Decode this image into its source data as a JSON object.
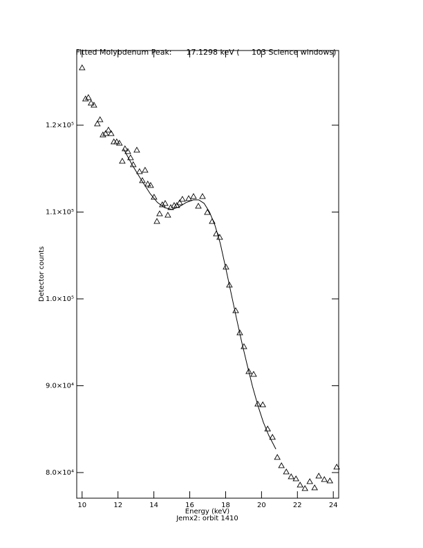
{
  "chart_data": {
    "type": "scatter",
    "title": "Fitted Molybdenum Peak:      17.1298 keV (     103 Science windows)",
    "x_label": "Energy (keV)",
    "subtitle": "Jemx2: orbit 1410",
    "y_label": "Detector counts",
    "xlim": [
      9.7,
      24.3
    ],
    "ylim": [
      77050,
      128600
    ],
    "xticks": [
      10,
      12,
      14,
      16,
      18,
      20,
      22,
      24
    ],
    "yticks": [
      {
        "value": 80000,
        "label": "8.0×10⁴"
      },
      {
        "value": 90000,
        "label": "9.0×10⁴"
      },
      {
        "value": 100000,
        "label": "1.0×10⁵"
      },
      {
        "value": 110000,
        "label": "1.1×10⁵"
      },
      {
        "value": 120000,
        "label": "1.2×10⁵"
      }
    ],
    "color": "#000000",
    "points": {
      "x": [
        10.0,
        10.19,
        10.35,
        10.5,
        10.66,
        10.85,
        11.0,
        11.16,
        11.31,
        11.47,
        11.62,
        11.77,
        11.93,
        12.08,
        12.24,
        12.39,
        12.55,
        12.7,
        12.85,
        13.05,
        13.2,
        13.36,
        13.51,
        13.66,
        13.82,
        14.01,
        14.17,
        14.32,
        14.47,
        14.63,
        14.78,
        14.94,
        15.13,
        15.28,
        15.44,
        15.59,
        15.94,
        16.21,
        16.48,
        16.71,
        16.98,
        17.25,
        17.48,
        17.67,
        18.02,
        18.21,
        18.56,
        18.79,
        19.02,
        19.29,
        19.56,
        19.79,
        20.07,
        20.34,
        20.61,
        20.88,
        21.11,
        21.38,
        21.65,
        21.92,
        22.15,
        22.42,
        22.69,
        22.96,
        23.19,
        23.5,
        23.81,
        24.19
      ],
      "y": [
        126613,
        123028,
        123187,
        122550,
        122311,
        120159,
        120637,
        118884,
        119044,
        119442,
        119044,
        118088,
        118088,
        117928,
        115857,
        117291,
        116972,
        116255,
        115458,
        117131,
        114661,
        113625,
        114821,
        113227,
        113068,
        111713,
        108924,
        109801,
        110837,
        110996,
        109641,
        110518,
        110757,
        110757,
        111076,
        111474,
        111554,
        111793,
        110677,
        111793,
        109960,
        108924,
        107490,
        107091,
        103665,
        101593,
        98645,
        96095,
        94502,
        91633,
        91315,
        87888,
        87809,
        85020,
        84064,
        81753,
        80797,
        80080,
        79522,
        79283,
        78566,
        78167,
        78964,
        78247,
        79602,
        79203,
        79044,
        80637
      ]
    },
    "fit": {
      "x": [
        12.3,
        12.8,
        13.3,
        13.8,
        14.2,
        14.6,
        15.0,
        15.4,
        15.8,
        16.2,
        16.5,
        16.8,
        17.1,
        17.4,
        17.7,
        18.0,
        18.3,
        18.6,
        18.9,
        19.2,
        19.5,
        19.8,
        20.1,
        20.4,
        20.8
      ],
      "y": [
        117300,
        115400,
        113700,
        112100,
        111100,
        110500,
        110300,
        110600,
        111100,
        111400,
        111400,
        111000,
        110000,
        108500,
        106400,
        103600,
        100700,
        97800,
        95000,
        92400,
        89900,
        87700,
        85800,
        84300,
        82700
      ]
    }
  }
}
